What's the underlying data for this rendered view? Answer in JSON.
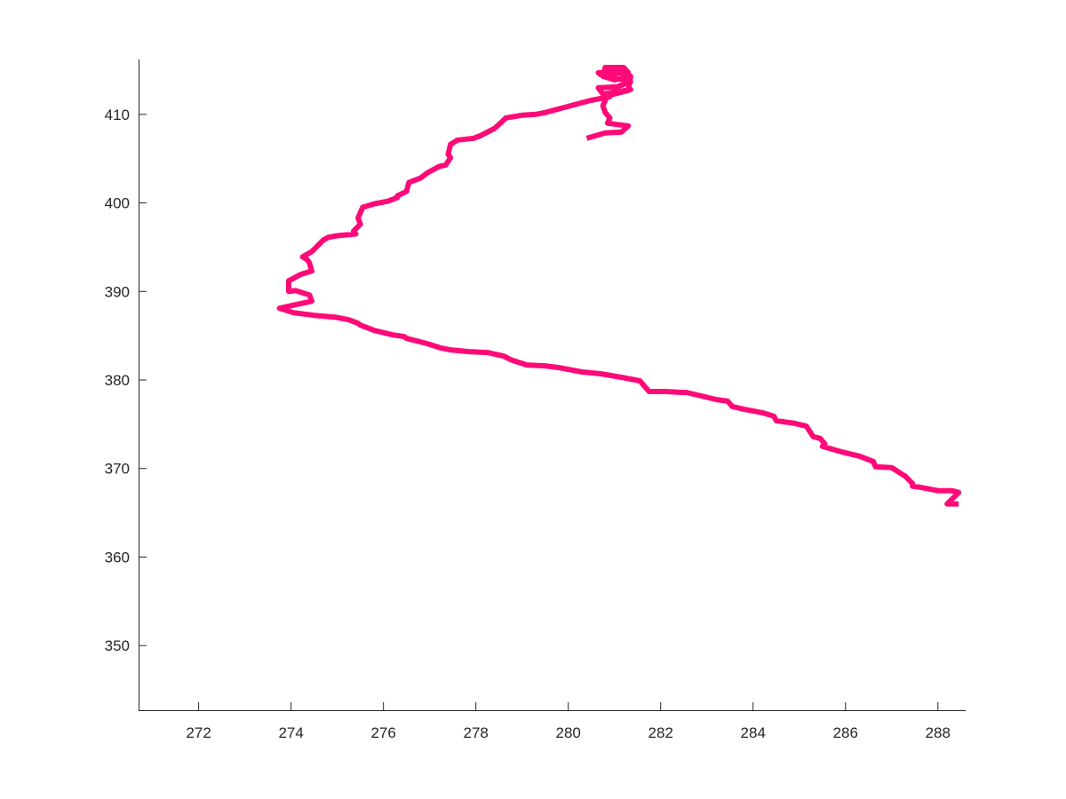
{
  "chart_data": {
    "type": "line",
    "title": "",
    "xlabel": "",
    "ylabel": "",
    "xlim": [
      270.7,
      288.6
    ],
    "ylim": [
      342.7,
      416.2
    ],
    "grid": false,
    "line_color": "#ff0a78",
    "x_ticks": [
      272,
      274,
      276,
      278,
      280,
      282,
      284,
      286,
      288
    ],
    "x_tick_labels": [
      "272",
      "274",
      "276",
      "278",
      "280",
      "282",
      "284",
      "286",
      "288"
    ],
    "y_ticks": [
      350,
      360,
      370,
      380,
      390,
      400,
      410
    ],
    "y_tick_labels": [
      "350",
      "360",
      "370",
      "380",
      "390",
      "400",
      "410"
    ],
    "series": [
      {
        "x": [
          288.45,
          288.2,
          288.45,
          288.3,
          288.0,
          287.6,
          287.45,
          287.45,
          287.3,
          287.0,
          286.65,
          286.6,
          286.3,
          285.9,
          285.5,
          285.55,
          285.45,
          285.3,
          285.15,
          284.9,
          284.5,
          284.45,
          284.2,
          283.8,
          283.55,
          283.45,
          283.2,
          282.8,
          282.55,
          282.45,
          282.1,
          281.75,
          281.65,
          281.55,
          281.15,
          280.7,
          280.3,
          279.8,
          279.5,
          279.1,
          278.75,
          278.6,
          278.25,
          277.85,
          277.45,
          277.25,
          276.95,
          276.5,
          276.45,
          276.2,
          275.8,
          275.5,
          275.45,
          275.25,
          274.95,
          274.5,
          274.35,
          274.05,
          273.75,
          274.1,
          274.45,
          274.4,
          274.1,
          273.95,
          273.95,
          274.2,
          274.45,
          274.4,
          274.35,
          274.25,
          274.45,
          274.7,
          274.8,
          275.0,
          275.4,
          275.35,
          275.5,
          275.45,
          275.55,
          275.8,
          276.1,
          276.3,
          276.3,
          276.5,
          276.55,
          276.8,
          276.95,
          277.2,
          277.35,
          277.45,
          277.4,
          277.45,
          277.6,
          277.95,
          278.1,
          278.4,
          278.55,
          278.65,
          279.0,
          279.3,
          279.5,
          279.85,
          280.5,
          280.9,
          280.9,
          281.35,
          280.75,
          280.65,
          281.05,
          281.35,
          280.7,
          280.65,
          281.3,
          281.2,
          280.8,
          280.75,
          281.0,
          281.35,
          281.3,
          280.85,
          280.75,
          280.8,
          280.9,
          280.85,
          281.3,
          281.15,
          280.8,
          280.4
        ],
        "y": [
          366.0,
          366.0,
          367.3,
          367.5,
          367.5,
          367.9,
          368.0,
          368.3,
          369.1,
          370.1,
          370.2,
          370.8,
          371.4,
          371.9,
          372.5,
          372.8,
          373.4,
          373.6,
          374.8,
          375.1,
          375.4,
          375.9,
          376.3,
          376.7,
          377.0,
          377.6,
          377.8,
          378.3,
          378.6,
          378.6,
          378.7,
          378.7,
          379.3,
          379.9,
          380.3,
          380.7,
          380.9,
          381.4,
          381.6,
          381.7,
          382.3,
          382.7,
          383.1,
          383.2,
          383.4,
          383.6,
          384.1,
          384.7,
          384.9,
          385.1,
          385.6,
          386.2,
          386.4,
          386.8,
          387.1,
          387.3,
          387.4,
          387.6,
          388.1,
          388.5,
          388.9,
          389.6,
          390.1,
          390.0,
          391.2,
          391.9,
          392.3,
          393.2,
          393.6,
          393.9,
          394.5,
          395.8,
          396.1,
          396.3,
          396.5,
          396.8,
          397.6,
          398.3,
          399.5,
          399.9,
          400.2,
          400.6,
          400.8,
          401.3,
          402.3,
          402.8,
          403.4,
          404.1,
          404.3,
          405.1,
          405.5,
          406.6,
          407.1,
          407.3,
          407.6,
          408.4,
          409.1,
          409.6,
          409.9,
          410.0,
          410.2,
          410.7,
          411.6,
          412.0,
          412.2,
          412.8,
          412.3,
          413.0,
          413.1,
          413.7,
          414.5,
          414.7,
          414.7,
          415.3,
          415.3,
          414.3,
          413.9,
          414.3,
          412.7,
          412.1,
          411.0,
          410.2,
          409.6,
          409.0,
          408.7,
          408.0,
          407.9,
          407.3
        ]
      }
    ]
  }
}
